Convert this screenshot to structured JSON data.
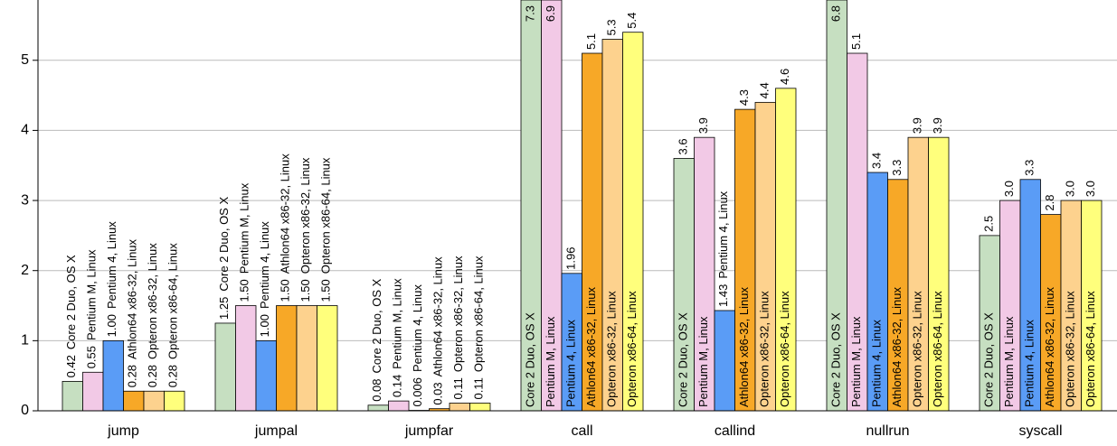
{
  "chart_data": {
    "type": "bar",
    "categories": [
      "jump",
      "jumpal",
      "jumpfar",
      "call",
      "callind",
      "nullrun",
      "syscall"
    ],
    "series": [
      {
        "name": "Core 2 Duo, OS X",
        "color": "#c6dfc1",
        "values": [
          0.42,
          1.25,
          0.08,
          7.3,
          3.6,
          6.8,
          2.5
        ],
        "value_labels": [
          "0.42",
          "1.25",
          "0.08",
          "7.3",
          "3.6",
          "6.8",
          "2.5"
        ]
      },
      {
        "name": "Pentium M, Linux",
        "color": "#f2c9e6",
        "values": [
          0.55,
          1.5,
          0.14,
          6.9,
          3.9,
          5.1,
          3.0
        ],
        "value_labels": [
          "0.55",
          "1.50",
          "0.14",
          "6.9",
          "3.9",
          "5.1",
          "3.0"
        ]
      },
      {
        "name": "Pentium 4, Linux",
        "color": "#5a9cf6",
        "values": [
          1.0,
          1.0,
          0.006,
          1.96,
          1.43,
          3.4,
          3.3
        ],
        "value_labels": [
          "1.00",
          "1.00",
          "0.006",
          "1.96",
          "1.43",
          "3.4",
          "3.3"
        ]
      },
      {
        "name": "Athlon64 x86-32, Linux",
        "color": "#f7a827",
        "values": [
          0.28,
          1.5,
          0.03,
          5.1,
          4.3,
          3.3,
          2.8
        ],
        "value_labels": [
          "0.28",
          "1.50",
          "0.03",
          "5.1",
          "4.3",
          "3.3",
          "2.8"
        ]
      },
      {
        "name": "Opteron x86-32, Linux",
        "color": "#fdd28e",
        "values": [
          0.28,
          1.5,
          0.11,
          5.3,
          4.4,
          3.9,
          3.0
        ],
        "value_labels": [
          "0.28",
          "1.50",
          "0.11",
          "5.3",
          "4.4",
          "3.9",
          "3.0"
        ]
      },
      {
        "name": "Opteron x86-64, Linux",
        "color": "#ffff7c",
        "values": [
          0.28,
          1.5,
          0.11,
          5.4,
          4.6,
          3.9,
          3.0
        ],
        "value_labels": [
          "0.28",
          "1.50",
          "0.11",
          "5.4",
          "4.6",
          "3.9",
          "3.0"
        ]
      }
    ],
    "ylim": [
      0,
      5.86
    ],
    "yticks": [
      0,
      1,
      2,
      3,
      4,
      5
    ],
    "grid": true
  }
}
